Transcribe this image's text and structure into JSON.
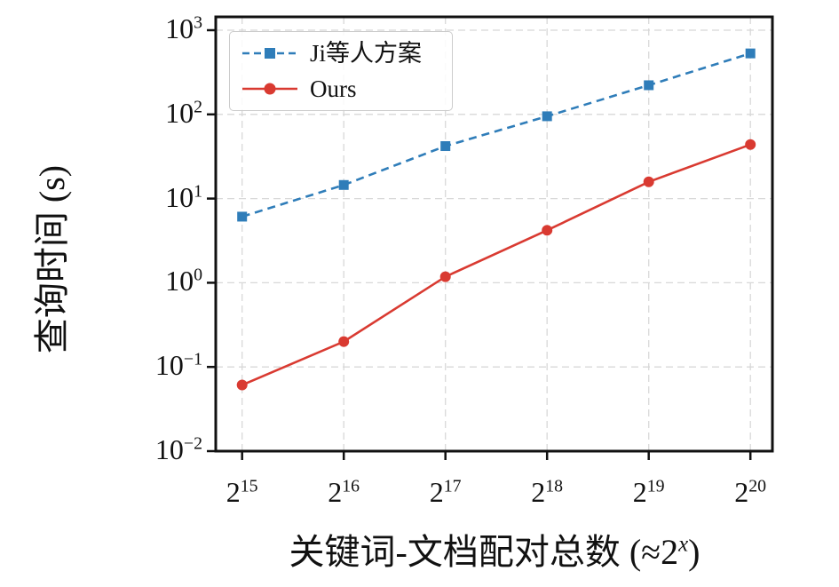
{
  "chart_data": {
    "type": "line",
    "title": "",
    "xlabel_prefix": "关键词-文档配对总数 (≈2",
    "xlabel_sup": "x",
    "xlabel_suffix": ")",
    "ylabel": "查询时间 (s)",
    "x_axis": {
      "scale": "log2-categories",
      "tick_base": "2",
      "tick_exponents": [
        "15",
        "16",
        "17",
        "18",
        "19",
        "20"
      ]
    },
    "y_axis": {
      "scale": "log10",
      "tick_base": "10",
      "tick_exponents": [
        "3",
        "2",
        "1",
        "0",
        "−1",
        "−2"
      ],
      "tick_values": [
        1000,
        100,
        10,
        1,
        0.1,
        0.01
      ],
      "ylim": [
        0.01,
        1450
      ],
      "grid": true
    },
    "series": [
      {
        "name": "Ji等人方案",
        "color": "#2f7db9",
        "line_style": "dashed",
        "marker": "square",
        "values": [
          6.1,
          14.5,
          42,
          95,
          222,
          530
        ]
      },
      {
        "name": "Ours",
        "color": "#d93a31",
        "line_style": "solid",
        "marker": "circle",
        "values": [
          0.061,
          0.2,
          1.18,
          4.2,
          15.8,
          43.8
        ]
      }
    ],
    "grid_color": "#d8d8d8",
    "spine_color": "#111111",
    "legend_position": "upper-left"
  }
}
